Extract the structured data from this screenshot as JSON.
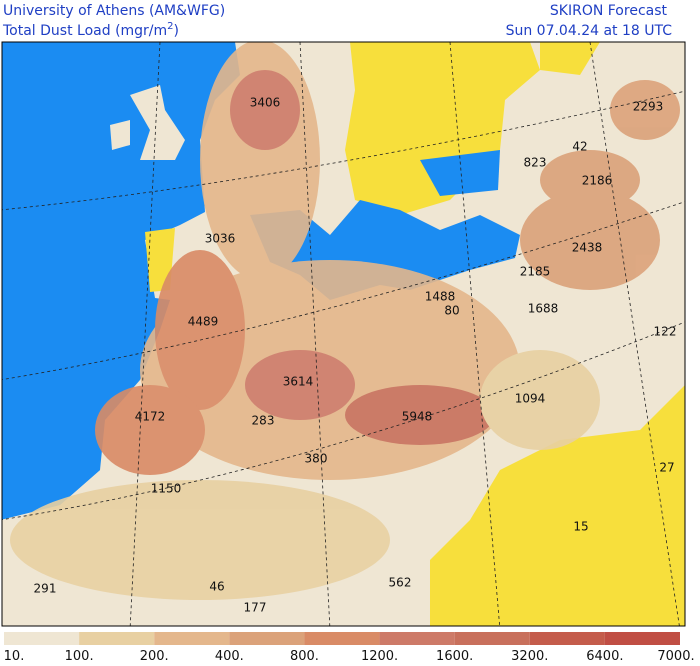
{
  "header": {
    "institution": "University of Athens (AM&WFG)",
    "product": "Total Dust Load (mgr/m",
    "product_exponent": "2",
    "product_close": ")",
    "model": "SKIRON Forecast",
    "valid_time": "Sun 07.04.24 at 18 UTC"
  },
  "map_labels": [
    3406,
    2293,
    42,
    823,
    2186,
    3036,
    2438,
    2185,
    1488,
    80,
    1688,
    4489,
    122,
    3614,
    1094,
    4172,
    283,
    5948,
    380,
    27,
    1150,
    15,
    291,
    46,
    562,
    177
  ],
  "colorbar": {
    "labels": [
      "10.",
      "100.",
      "200.",
      "400.",
      "800.",
      "1200.",
      "1600.",
      "3200.",
      "6400.",
      "7000."
    ],
    "colors": [
      "#efe6d3",
      "#e8d0a2",
      "#e4b78c",
      "#dba27a",
      "#d98b66",
      "#cd7a68",
      "#c8705c",
      "#c45c4b",
      "#c04e44"
    ]
  }
}
